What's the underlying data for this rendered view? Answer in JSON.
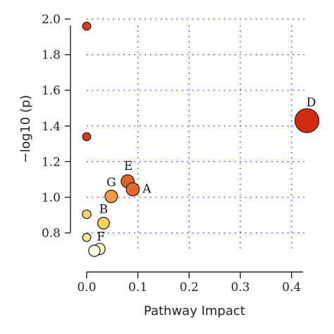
{
  "chart_data": {
    "type": "scatter",
    "title": "",
    "xlabel": "Pathway Impact",
    "ylabel": "−log10 (p)",
    "xlim": [
      0,
      0.43
    ],
    "ylim": [
      0.7,
      2.0
    ],
    "xticks": [
      "0.0",
      "0.1",
      "0.2",
      "0.3",
      "0.4"
    ],
    "xtick_values": [
      0,
      0.1,
      0.2,
      0.3,
      0.4
    ],
    "yticks": [
      "0.8",
      "1.0",
      "1.2",
      "1.4",
      "1.6",
      "1.8",
      "2.0"
    ],
    "ytick_values": [
      0.8,
      1.0,
      1.2,
      1.4,
      1.6,
      1.8,
      2.0
    ],
    "grid": true,
    "legend": "none",
    "points": [
      {
        "label": "",
        "x": 0.0,
        "y": 1.96,
        "size": 0.2,
        "color": "#d93a1a"
      },
      {
        "label": "",
        "x": 0.0,
        "y": 1.34,
        "size": 0.2,
        "color": "#d93a1a"
      },
      {
        "label": "D",
        "x": 0.43,
        "y": 1.43,
        "size": 1.0,
        "color": "#d42a12"
      },
      {
        "label": "E",
        "x": 0.08,
        "y": 1.09,
        "size": 0.45,
        "color": "#e0632a"
      },
      {
        "label": "A",
        "x": 0.09,
        "y": 1.045,
        "size": 0.45,
        "color": "#e26a2e"
      },
      {
        "label": "G",
        "x": 0.048,
        "y": 1.005,
        "size": 0.42,
        "color": "#f19a44"
      },
      {
        "label": "",
        "x": 0.0,
        "y": 0.905,
        "size": 0.22,
        "color": "#f7d36a"
      },
      {
        "label": "B",
        "x": 0.033,
        "y": 0.855,
        "size": 0.38,
        "color": "#f8d25e"
      },
      {
        "label": "",
        "x": 0.0,
        "y": 0.775,
        "size": 0.2,
        "color": "#fbe78e"
      },
      {
        "label": "F",
        "x": 0.025,
        "y": 0.71,
        "size": 0.36,
        "color": "#fff6c4"
      },
      {
        "label": "",
        "x": 0.015,
        "y": 0.7,
        "size": 0.36,
        "color": "#fffde6"
      }
    ]
  }
}
